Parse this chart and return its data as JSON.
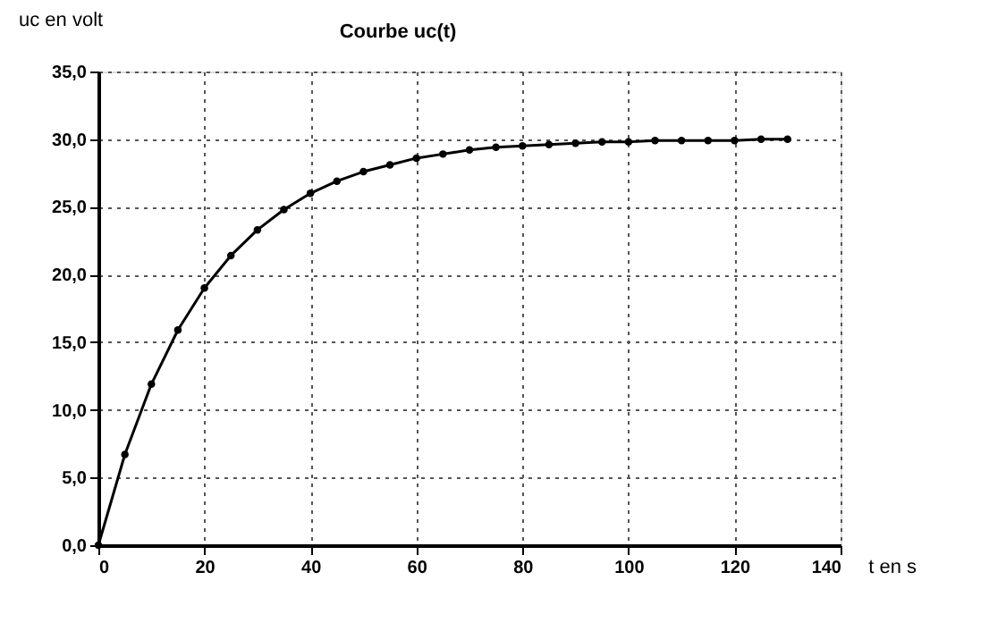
{
  "chart_data": {
    "type": "line",
    "title": "Courbe uc(t)",
    "xlabel": "t en s",
    "ylabel": "uc en volt",
    "x": [
      0,
      5,
      10,
      15,
      20,
      25,
      30,
      35,
      40,
      45,
      50,
      55,
      60,
      65,
      70,
      75,
      80,
      85,
      90,
      95,
      100,
      105,
      110,
      115,
      120,
      125,
      130
    ],
    "series": [
      {
        "color": "#000000",
        "values": [
          0,
          6.7,
          11.9,
          15.9,
          19.0,
          21.4,
          23.3,
          24.8,
          26.0,
          26.9,
          27.6,
          28.1,
          28.6,
          28.9,
          29.2,
          29.4,
          29.5,
          29.6,
          29.7,
          29.8,
          29.8,
          29.9,
          29.9,
          29.9,
          29.9,
          30.0,
          30.0
        ]
      }
    ],
    "xlim": [
      0,
      140
    ],
    "xticks": [
      0,
      20,
      40,
      60,
      80,
      100,
      120,
      140
    ],
    "ylim": [
      0,
      35
    ],
    "yticks": [
      {
        "value": 0,
        "label": "0,0"
      },
      {
        "value": 5,
        "label": "5,0"
      },
      {
        "value": 10,
        "label": "10,0"
      },
      {
        "value": 15,
        "label": "15,0"
      },
      {
        "value": 20,
        "label": "20,0"
      },
      {
        "value": 25,
        "label": "25,0"
      },
      {
        "value": 30,
        "label": "30,0"
      },
      {
        "value": 35,
        "label": "35,0"
      }
    ],
    "grid": true,
    "marker": "circle",
    "line_style": "solid"
  }
}
